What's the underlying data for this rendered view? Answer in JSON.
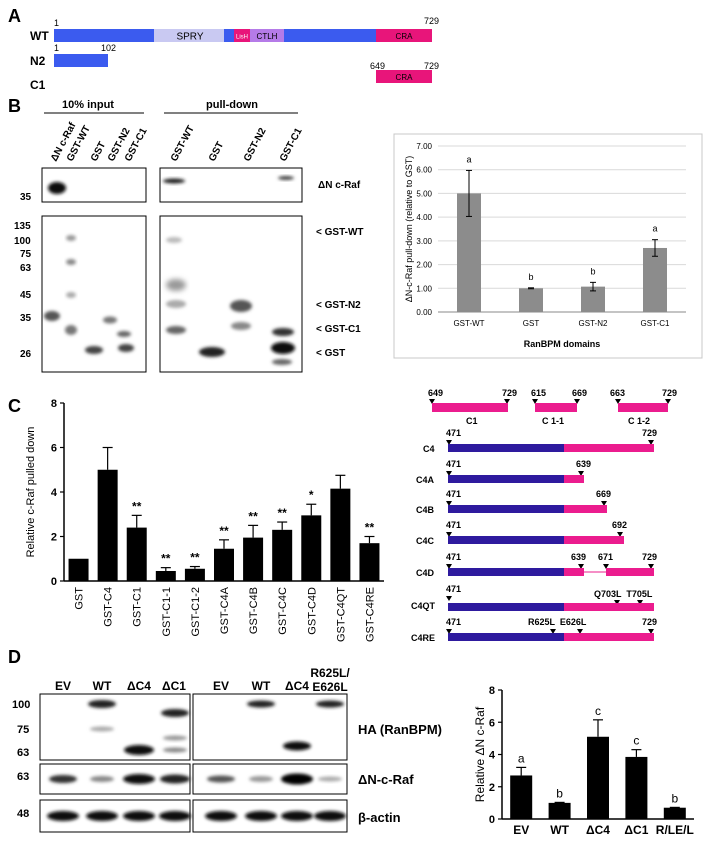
{
  "colors": {
    "blue": "#3B5BEF",
    "lavender": "#C9C9F2",
    "purple": "#B57BE8",
    "pink": "#E8157A",
    "magenta": "#EB1C8E",
    "navy": "#2E1A9E",
    "gray_bar": "#8C8C8C",
    "black_bar": "#000000"
  },
  "panelA": {
    "letter": "A",
    "rows": [
      {
        "label": "WT",
        "start": "1",
        "end": "729",
        "domains": [
          {
            "name": "SPRY"
          },
          {
            "name": "LisH"
          },
          {
            "name": "CTLH"
          },
          {
            "name": "CRA"
          }
        ]
      },
      {
        "label": "N2",
        "start": "1",
        "end": "102"
      },
      {
        "label": "C1",
        "start": "649",
        "end": "729",
        "domain": "CRA"
      }
    ]
  },
  "panelB": {
    "letter": "B",
    "input_header": "10% input",
    "pulldown_header": "pull-down",
    "input_lanes": [
      "ΔN c-Raf",
      "GST-WT",
      "GST",
      "GST-N2",
      "GST-C1"
    ],
    "pulldown_lanes": [
      "GST-WT",
      "GST",
      "GST-N2",
      "GST-C1"
    ],
    "mw_top": [
      "35"
    ],
    "mw_bottom": [
      "135",
      "100",
      "75",
      "63",
      "45",
      "35",
      "26"
    ],
    "band_labels": [
      "ΔN c-Raf",
      "< GST-WT",
      "< GST-N2",
      "< GST-C1",
      "< GST"
    ],
    "chart_data": {
      "type": "bar",
      "categories": [
        "GST-WT",
        "GST",
        "GST-N2",
        "GST-C1"
      ],
      "values": [
        5.0,
        1.0,
        1.07,
        2.7
      ],
      "errors": [
        0.97,
        0.02,
        0.18,
        0.35
      ],
      "letters": [
        "a",
        "b",
        "b",
        "a"
      ],
      "ylabel": "ΔN-c-Raf pull-down (relative to GST)",
      "xlabel": "RanBPM domains",
      "ylim": [
        0,
        7
      ],
      "yticks": [
        "0.00",
        "1.00",
        "2.00",
        "3.00",
        "4.00",
        "5.00",
        "6.00",
        "7.00"
      ]
    }
  },
  "panelC": {
    "letter": "C",
    "chart_data": {
      "type": "bar",
      "categories": [
        "GST",
        "GST-C4",
        "GST-C1",
        "GST-C1-1",
        "GST-C1-2",
        "GST-C4A",
        "GST-C4B",
        "GST-C4C",
        "GST-C4D",
        "GST-C4QT",
        "GST-C4RE"
      ],
      "values": [
        1.0,
        5.0,
        2.4,
        0.45,
        0.55,
        1.45,
        1.95,
        2.3,
        2.95,
        4.15,
        1.7
      ],
      "errors": [
        0,
        1.0,
        0.55,
        0.15,
        0.1,
        0.4,
        0.55,
        0.35,
        0.5,
        0.6,
        0.3
      ],
      "stars": [
        "",
        "",
        "**",
        "**",
        "**",
        "**",
        "**",
        "**",
        "*",
        "",
        "**"
      ],
      "ylabel": "Relative c-Raf pulled down",
      "ylim": [
        0,
        8
      ],
      "yticks": [
        "0",
        "2",
        "4",
        "6",
        "8"
      ]
    },
    "constructs": [
      {
        "label": "C1",
        "start": "649",
        "end": "729"
      },
      {
        "label": "C 1-1",
        "start": "615",
        "end": "669"
      },
      {
        "label": "C 1-2",
        "start": "663",
        "end": "729"
      },
      {
        "label": "C4",
        "start": "471",
        "end": "729"
      },
      {
        "label": "C4A",
        "start": "471",
        "end": "639"
      },
      {
        "label": "C4B",
        "start": "471",
        "end": "669"
      },
      {
        "label": "C4C",
        "start": "471",
        "end": "692"
      },
      {
        "label": "C4D",
        "start": "471",
        "gap_start": "639",
        "gap_end": "671",
        "end": "729"
      },
      {
        "label": "C4QT",
        "start": "471",
        "mutations": "Q703L  T705L"
      },
      {
        "label": "C4RE",
        "start": "471",
        "mutations": "R625L  E626L",
        "end": "729"
      }
    ]
  },
  "panelD": {
    "letter": "D",
    "lanes_left": [
      "EV",
      "WT",
      "ΔC4",
      "ΔC1"
    ],
    "lanes_right": [
      "EV",
      "WT",
      "ΔC4",
      "R625L/",
      "E626L"
    ],
    "mw": [
      "100",
      "75",
      "63",
      "63",
      "48"
    ],
    "blot_labels": [
      "HA (RanBPM)",
      "ΔN-c-Raf",
      "β-actin"
    ],
    "chart_data": {
      "type": "bar",
      "categories": [
        "EV",
        "WT",
        "ΔC4",
        "ΔC1",
        "R/LE/L"
      ],
      "values": [
        2.7,
        1.0,
        5.1,
        3.85,
        0.7
      ],
      "errors": [
        0.5,
        0.03,
        1.05,
        0.45,
        0.02
      ],
      "letters": [
        "a",
        "b",
        "c",
        "c",
        "b"
      ],
      "ylabel": "Relative ΔN c-Raf",
      "ylim": [
        0,
        8
      ],
      "yticks": [
        "0",
        "2",
        "4",
        "6",
        "8"
      ]
    }
  }
}
